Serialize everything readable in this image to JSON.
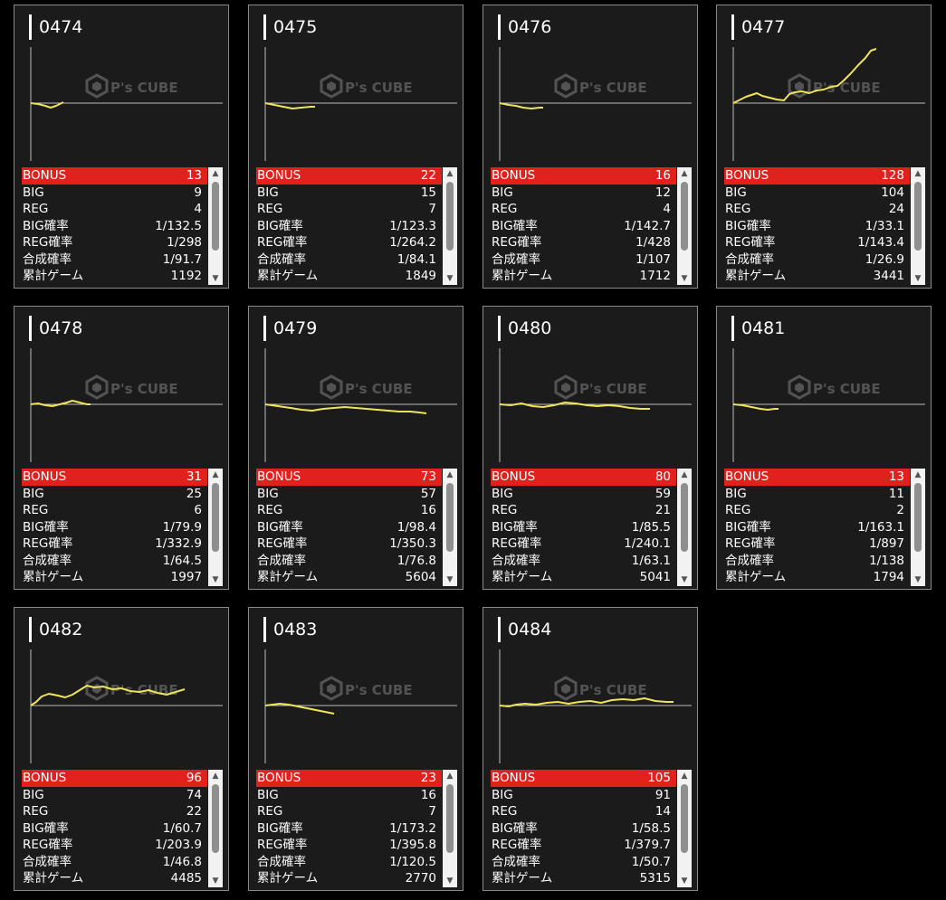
{
  "labels": {
    "bonus": "BONUS",
    "big": "BIG",
    "reg": "REG",
    "big_rate": "BIG確率",
    "reg_rate": "REG確率",
    "combined_rate": "合成確率",
    "total_games": "累計ゲーム"
  },
  "watermark": {
    "logo": "P's CUBE",
    "icon": "cube-logo-icon"
  },
  "colors": {
    "bonus_row": "#e0211d",
    "graph_line": "#f0e35c",
    "card_bg": "#1b1b1b"
  },
  "machines": [
    {
      "number": "0474",
      "bonus": "13",
      "big": "9",
      "reg": "4",
      "big_rate": "1/132.5",
      "reg_rate": "1/298",
      "combined_rate": "1/91.7",
      "total_games": "1192"
    },
    {
      "number": "0475",
      "bonus": "22",
      "big": "15",
      "reg": "7",
      "big_rate": "1/123.3",
      "reg_rate": "1/264.2",
      "combined_rate": "1/84.1",
      "total_games": "1849"
    },
    {
      "number": "0476",
      "bonus": "16",
      "big": "12",
      "reg": "4",
      "big_rate": "1/142.7",
      "reg_rate": "1/428",
      "combined_rate": "1/107",
      "total_games": "1712"
    },
    {
      "number": "0477",
      "bonus": "128",
      "big": "104",
      "reg": "24",
      "big_rate": "1/33.1",
      "reg_rate": "1/143.4",
      "combined_rate": "1/26.9",
      "total_games": "3441"
    },
    {
      "number": "0478",
      "bonus": "31",
      "big": "25",
      "reg": "6",
      "big_rate": "1/79.9",
      "reg_rate": "1/332.9",
      "combined_rate": "1/64.5",
      "total_games": "1997"
    },
    {
      "number": "0479",
      "bonus": "73",
      "big": "57",
      "reg": "16",
      "big_rate": "1/98.4",
      "reg_rate": "1/350.3",
      "combined_rate": "1/76.8",
      "total_games": "5604"
    },
    {
      "number": "0480",
      "bonus": "80",
      "big": "59",
      "reg": "21",
      "big_rate": "1/85.5",
      "reg_rate": "1/240.1",
      "combined_rate": "1/63.1",
      "total_games": "5041"
    },
    {
      "number": "0481",
      "bonus": "13",
      "big": "11",
      "reg": "2",
      "big_rate": "1/163.1",
      "reg_rate": "1/897",
      "combined_rate": "1/138",
      "total_games": "1794"
    },
    {
      "number": "0482",
      "bonus": "96",
      "big": "74",
      "reg": "22",
      "big_rate": "1/60.7",
      "reg_rate": "1/203.9",
      "combined_rate": "1/46.8",
      "total_games": "4485"
    },
    {
      "number": "0483",
      "bonus": "23",
      "big": "16",
      "reg": "7",
      "big_rate": "1/173.2",
      "reg_rate": "1/395.8",
      "combined_rate": "1/120.5",
      "total_games": "2770"
    },
    {
      "number": "0484",
      "bonus": "105",
      "big": "91",
      "reg": "14",
      "big_rate": "1/58.5",
      "reg_rate": "1/379.7",
      "combined_rate": "1/50.7",
      "total_games": "5315"
    }
  ]
}
